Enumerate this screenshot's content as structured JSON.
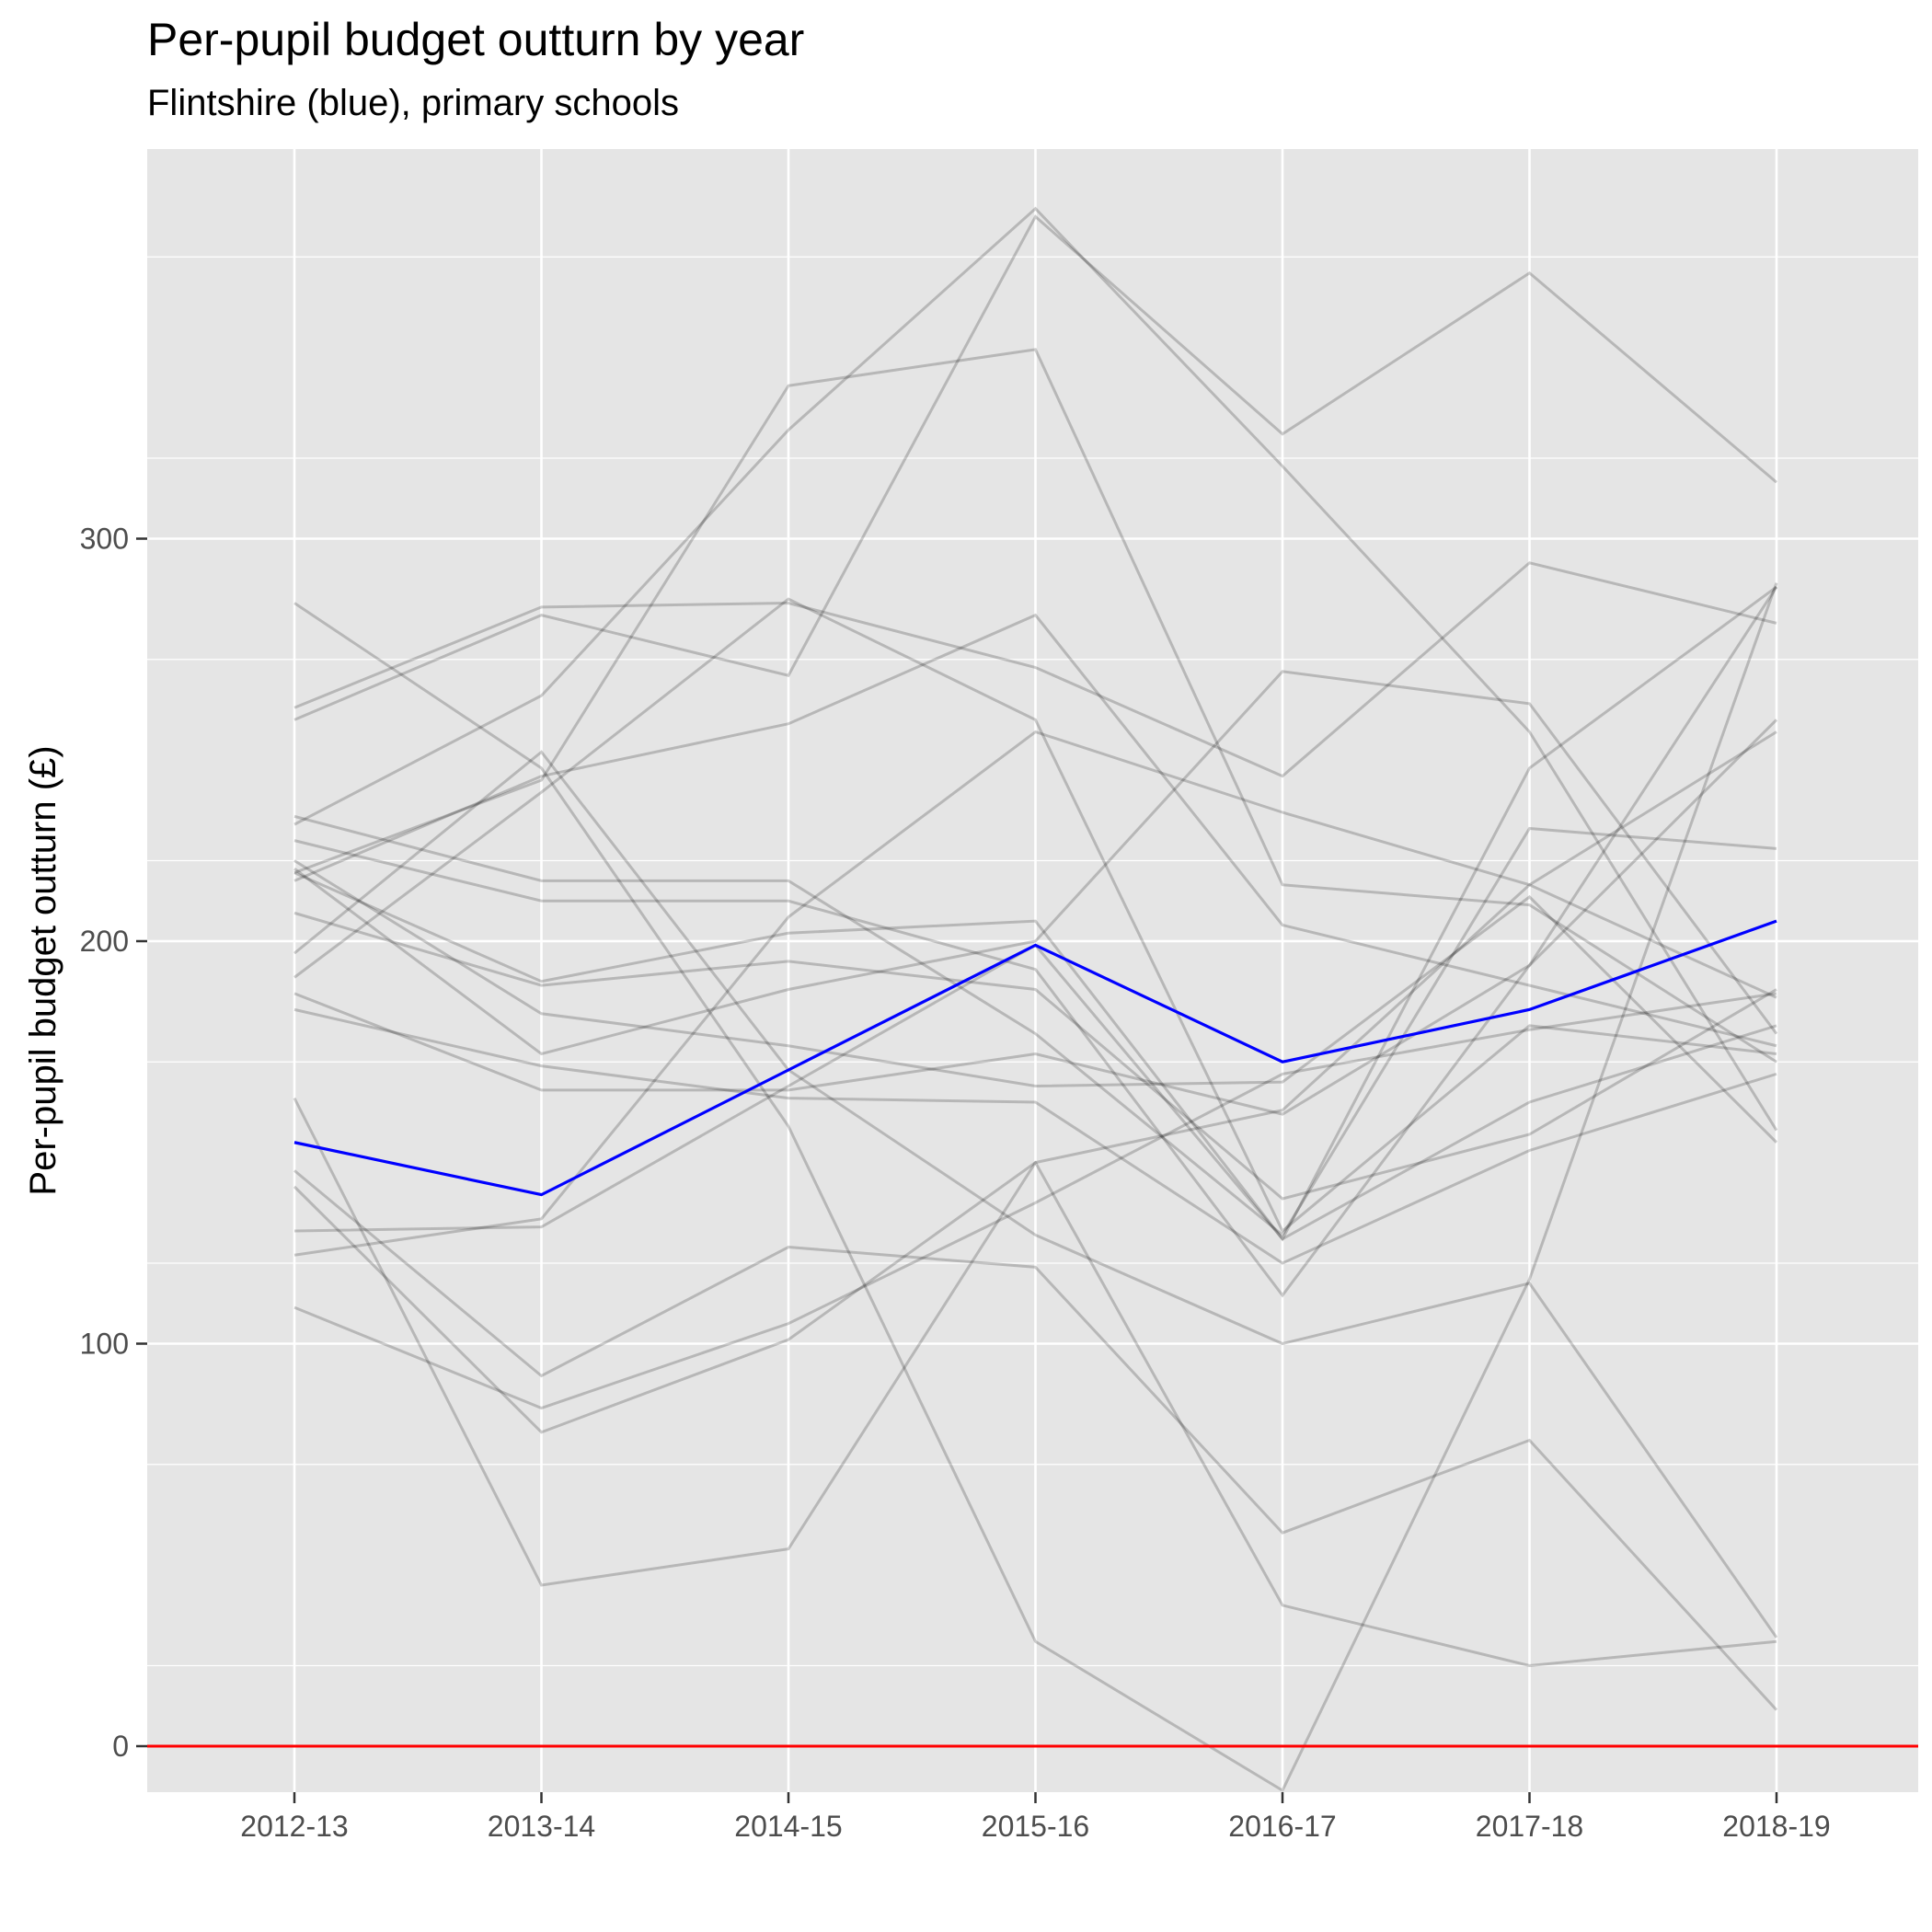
{
  "chart_data": {
    "type": "line",
    "title": "Per-pupil budget outturn by year",
    "subtitle": "Flintshire (blue), primary schools",
    "xlabel": "",
    "ylabel": "Per-pupil budget outturn (£)",
    "categories": [
      "2012-13",
      "2013-14",
      "2014-15",
      "2015-16",
      "2016-17",
      "2017-18",
      "2018-19"
    ],
    "ylim": [
      -30,
      395
    ],
    "yticks": [
      0,
      100,
      200,
      300
    ],
    "grid": true,
    "legend": "none",
    "reference_line": {
      "y": 0,
      "color": "#ff0000"
    },
    "highlight_color": "#0000ff",
    "background_color": "#ffffff",
    "other_color": "#000000",
    "series": [
      {
        "highlight": true,
        "values": [
          150,
          137,
          168,
          199,
          170,
          183,
          205
        ]
      },
      {
        "values": [
          284,
          243,
          154,
          26,
          -11,
          116,
          289
        ]
      },
      {
        "values": [
          258,
          283,
          284,
          268,
          241,
          294,
          279
        ]
      },
      {
        "values": [
          255,
          281,
          266,
          380,
          326,
          366,
          314
        ]
      },
      {
        "values": [
          229,
          261,
          327,
          382,
          318,
          252,
          153
        ]
      },
      {
        "values": [
          231,
          215,
          215,
          177,
          127,
          228,
          223
        ]
      },
      {
        "values": [
          225,
          210,
          210,
          193,
          112,
          194,
          288
        ]
      },
      {
        "values": [
          220,
          182,
          174,
          164,
          165,
          211,
          150
        ]
      },
      {
        "values": [
          217,
          190,
          202,
          205,
          126,
          243,
          288
        ]
      },
      {
        "values": [
          217,
          240,
          338,
          347,
          214,
          209,
          170
        ]
      },
      {
        "values": [
          207,
          189,
          195,
          188,
          136,
          152,
          188
        ]
      },
      {
        "values": [
          197,
          247,
          168,
          127,
          100,
          115,
          27
        ]
      },
      {
        "values": [
          191,
          237,
          285,
          255,
          128,
          179,
          172
        ]
      },
      {
        "values": [
          187,
          163,
          163,
          172,
          157,
          194,
          255
        ]
      },
      {
        "values": [
          183,
          169,
          161,
          160,
          120,
          148,
          167
        ]
      },
      {
        "values": [
          161,
          40,
          49,
          145,
          158,
          214,
          186
        ]
      },
      {
        "values": [
          143,
          92,
          124,
          119,
          53,
          76,
          9
        ]
      },
      {
        "values": [
          139,
          78,
          101,
          145,
          35,
          20,
          26
        ]
      },
      {
        "values": [
          128,
          129,
          164,
          199,
          126,
          160,
          179
        ]
      },
      {
        "values": [
          122,
          131,
          206,
          252,
          232,
          214,
          252
        ]
      },
      {
        "values": [
          109,
          84,
          105,
          135,
          167,
          178,
          187
        ]
      },
      {
        "values": [
          218,
          172,
          188,
          200,
          267,
          259,
          177
        ]
      },
      {
        "values": [
          215,
          241,
          254,
          281,
          204,
          189,
          174
        ]
      }
    ]
  }
}
